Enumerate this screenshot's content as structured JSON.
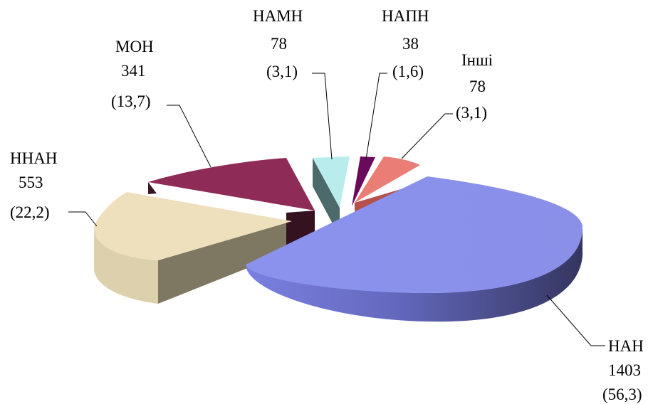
{
  "chart_data": {
    "type": "pie",
    "style": "3d-exploded",
    "slices": [
      {
        "name": "НАН",
        "value": 1403,
        "percent": "56,3",
        "color": "#8a92ee",
        "side": "#343660"
      },
      {
        "name": "ННАН",
        "value": 553,
        "percent": "22,2",
        "color": "#eee0bc",
        "side": "#7e7862"
      },
      {
        "name": "МОН",
        "value": 341,
        "percent": "13,7",
        "color": "#8f2b57",
        "side": "#3a1524"
      },
      {
        "name": "НАМН",
        "value": 78,
        "percent": "3,1",
        "color": "#b9ecec",
        "side": "#4d6a6a"
      },
      {
        "name": "НАПН",
        "value": 38,
        "percent": "1,6",
        "color": "#6a0a5a",
        "side": "#3a0630"
      },
      {
        "name": "Інші",
        "value": 78,
        "percent": "3,1",
        "color": "#ea7d76",
        "side": "#b5504c"
      }
    ]
  }
}
